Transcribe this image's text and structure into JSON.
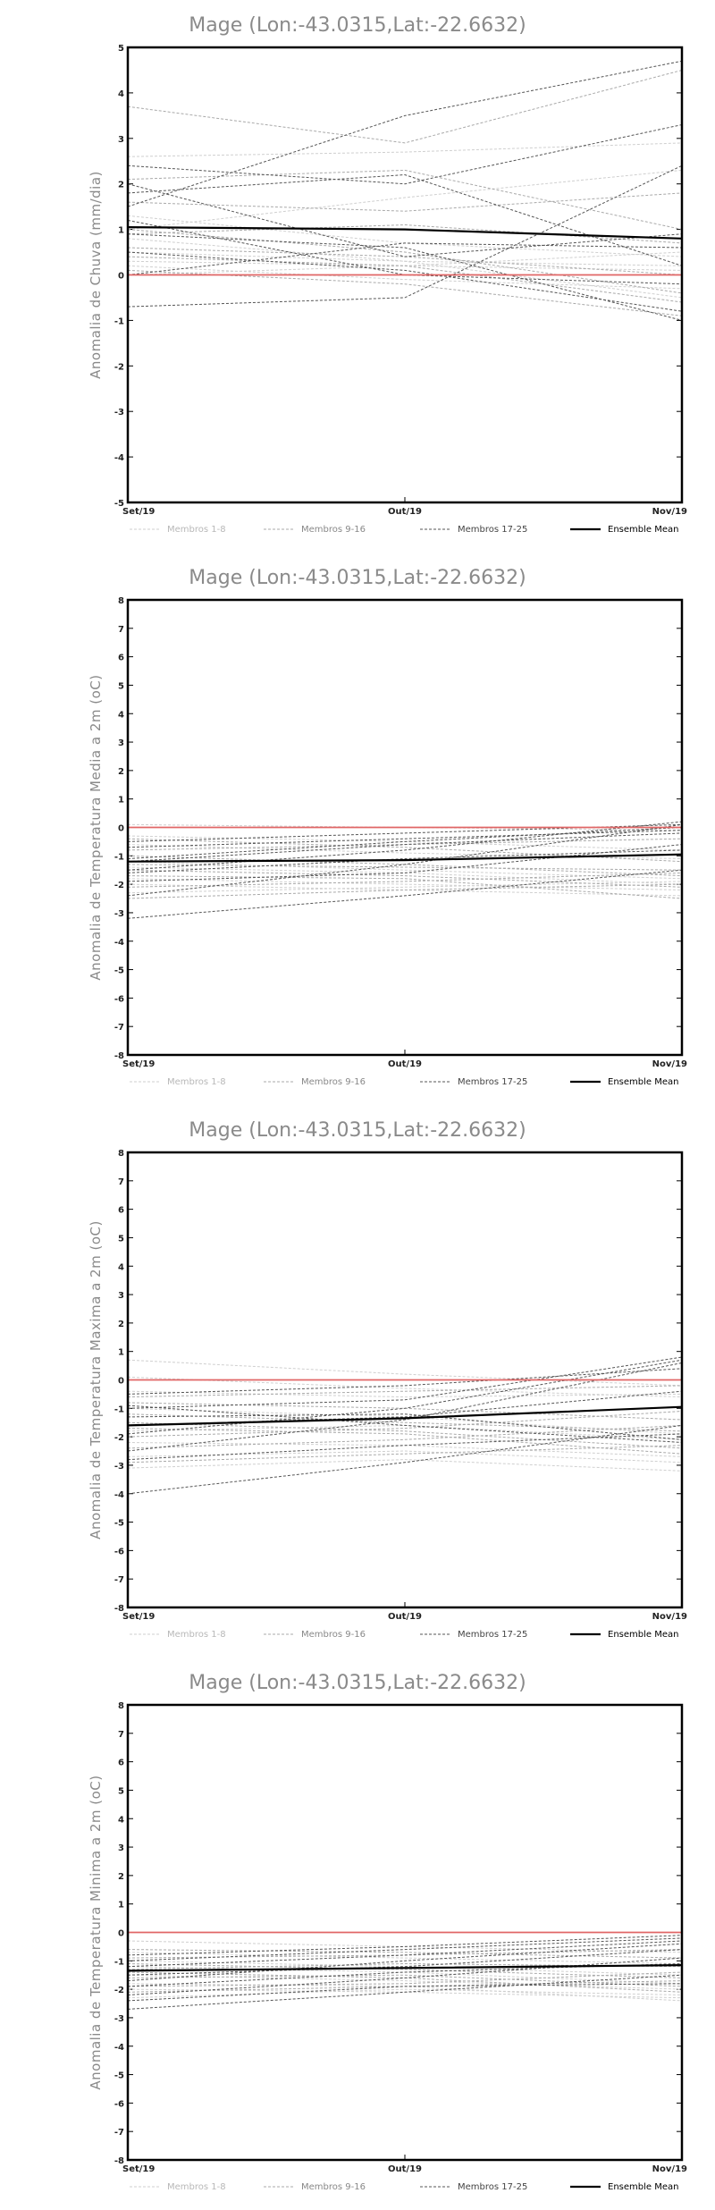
{
  "chart_data": [
    {
      "type": "line",
      "title": "Mage (Lon:-43.0315,Lat:-22.6632)",
      "ylabel": "Anomalia de Chuva (mm/dia)",
      "categories": [
        "Set/19",
        "Out/19",
        "Nov/19"
      ],
      "ylim": [
        -5,
        5
      ],
      "yticks": [
        -5,
        -4,
        -3,
        -2,
        -1,
        0,
        1,
        2,
        3,
        4,
        5
      ],
      "legend": [
        "Membros 1-8",
        "Membros 9-16",
        "Membros 17-25",
        "Ensemble Mean"
      ],
      "series": [
        {
          "group": 0,
          "values": [
            0.3,
            0.2,
            0.1
          ]
        },
        {
          "group": 0,
          "values": [
            0.5,
            0.3,
            0.2
          ]
        },
        {
          "group": 0,
          "values": [
            1.0,
            1.7,
            2.3
          ]
        },
        {
          "group": 0,
          "values": [
            2.6,
            2.7,
            2.9
          ]
        },
        {
          "group": 0,
          "values": [
            0.0,
            0.2,
            0.5
          ]
        },
        {
          "group": 0,
          "values": [
            1.3,
            0.7,
            0.4
          ]
        },
        {
          "group": 0,
          "values": [
            0.8,
            0.3,
            -0.5
          ]
        },
        {
          "group": 0,
          "values": [
            0.2,
            -0.1,
            -0.3
          ]
        },
        {
          "group": 1,
          "values": [
            0.6,
            0.4,
            0.0
          ]
        },
        {
          "group": 1,
          "values": [
            1.0,
            0.5,
            -0.4
          ]
        },
        {
          "group": 1,
          "values": [
            0.4,
            0.2,
            -0.6
          ]
        },
        {
          "group": 1,
          "values": [
            2.1,
            2.3,
            1.0
          ]
        },
        {
          "group": 1,
          "values": [
            3.7,
            2.9,
            4.5
          ]
        },
        {
          "group": 1,
          "values": [
            0.9,
            1.1,
            0.7
          ]
        },
        {
          "group": 1,
          "values": [
            0.1,
            -0.2,
            -0.9
          ]
        },
        {
          "group": 1,
          "values": [
            1.6,
            1.4,
            1.8
          ]
        },
        {
          "group": 2,
          "values": [
            1.5,
            3.5,
            4.7
          ]
        },
        {
          "group": 2,
          "values": [
            2.4,
            2.0,
            3.3
          ]
        },
        {
          "group": 2,
          "values": [
            -0.7,
            -0.5,
            2.4
          ]
        },
        {
          "group": 2,
          "values": [
            1.8,
            2.2,
            0.2
          ]
        },
        {
          "group": 2,
          "values": [
            0.5,
            0.1,
            -0.8
          ]
        },
        {
          "group": 2,
          "values": [
            0.9,
            0.6,
            -1.0
          ]
        },
        {
          "group": 2,
          "values": [
            2.0,
            0.4,
            0.9
          ]
        },
        {
          "group": 2,
          "values": [
            0.0,
            0.7,
            0.6
          ]
        },
        {
          "group": 2,
          "values": [
            1.2,
            0.0,
            -0.2
          ]
        },
        {
          "group": 3,
          "values": [
            1.05,
            1.0,
            0.8
          ]
        },
        {
          "group": 4,
          "values": [
            0.0,
            0.0,
            0.0
          ]
        }
      ]
    },
    {
      "type": "line",
      "title": "Mage (Lon:-43.0315,Lat:-22.6632)",
      "ylabel": "Anomalia de Temperatura Media a 2m (oC)",
      "categories": [
        "Set/19",
        "Out/19",
        "Nov/19"
      ],
      "ylim": [
        -8,
        8
      ],
      "yticks": [
        -8,
        -7,
        -6,
        -5,
        -4,
        -3,
        -2,
        -1,
        0,
        1,
        2,
        3,
        4,
        5,
        6,
        7,
        8
      ],
      "legend": [
        "Membros 1-8",
        "Membros 9-16",
        "Membros 17-25",
        "Ensemble Mean"
      ],
      "series": [
        {
          "group": 0,
          "values": [
            0.1,
            0.0,
            -0.1
          ]
        },
        {
          "group": 0,
          "values": [
            -1.2,
            -1.5,
            -1.8
          ]
        },
        {
          "group": 0,
          "values": [
            -2.0,
            -2.2,
            -2.4
          ]
        },
        {
          "group": 0,
          "values": [
            -0.6,
            -0.9,
            -1.1
          ]
        },
        {
          "group": 0,
          "values": [
            -1.8,
            -2.0,
            -2.2
          ]
        },
        {
          "group": 0,
          "values": [
            -1.4,
            -1.6,
            -2.0
          ]
        },
        {
          "group": 0,
          "values": [
            -2.3,
            -2.1,
            -1.9
          ]
        },
        {
          "group": 0,
          "values": [
            -0.3,
            -0.5,
            -0.8
          ]
        },
        {
          "group": 1,
          "values": [
            -1.0,
            -1.3,
            -1.7
          ]
        },
        {
          "group": 1,
          "values": [
            -1.5,
            -1.7,
            -2.1
          ]
        },
        {
          "group": 1,
          "values": [
            -2.1,
            -1.9,
            -1.6
          ]
        },
        {
          "group": 1,
          "values": [
            -0.8,
            -0.6,
            -0.4
          ]
        },
        {
          "group": 1,
          "values": [
            -1.7,
            -1.8,
            -2.5
          ]
        },
        {
          "group": 1,
          "values": [
            -0.4,
            -0.7,
            -1.2
          ]
        },
        {
          "group": 1,
          "values": [
            -1.3,
            -1.4,
            -1.5
          ]
        },
        {
          "group": 1,
          "values": [
            -2.5,
            -2.2,
            -2.0
          ]
        },
        {
          "group": 2,
          "values": [
            -3.2,
            -2.4,
            -1.5
          ]
        },
        {
          "group": 2,
          "values": [
            -2.4,
            -1.3,
            0.1
          ]
        },
        {
          "group": 2,
          "values": [
            -1.5,
            -0.8,
            0.2
          ]
        },
        {
          "group": 2,
          "values": [
            -1.1,
            -0.5,
            0.0
          ]
        },
        {
          "group": 2,
          "values": [
            -0.7,
            -0.4,
            -0.1
          ]
        },
        {
          "group": 2,
          "values": [
            -1.9,
            -1.6,
            -0.6
          ]
        },
        {
          "group": 2,
          "values": [
            -1.2,
            -0.6,
            -0.2
          ]
        },
        {
          "group": 2,
          "values": [
            -0.5,
            -0.2,
            0.1
          ]
        },
        {
          "group": 2,
          "values": [
            -1.6,
            -1.1,
            -0.8
          ]
        },
        {
          "group": 3,
          "values": [
            -1.2,
            -1.15,
            -0.95
          ]
        },
        {
          "group": 4,
          "values": [
            0.0,
            0.0,
            0.0
          ]
        }
      ]
    },
    {
      "type": "line",
      "title": "Mage (Lon:-43.0315,Lat:-22.6632)",
      "ylabel": "Anomalia de Temperatura Maxima a 2m (oC)",
      "categories": [
        "Set/19",
        "Out/19",
        "Nov/19"
      ],
      "ylim": [
        -8,
        8
      ],
      "yticks": [
        -8,
        -7,
        -6,
        -5,
        -4,
        -3,
        -2,
        -1,
        0,
        1,
        2,
        3,
        4,
        5,
        6,
        7,
        8
      ],
      "legend": [
        "Membros 1-8",
        "Membros 9-16",
        "Membros 17-25",
        "Ensemble Mean"
      ],
      "series": [
        {
          "group": 0,
          "values": [
            0.7,
            0.2,
            -0.2
          ]
        },
        {
          "group": 0,
          "values": [
            -2.7,
            -2.5,
            -2.9
          ]
        },
        {
          "group": 0,
          "values": [
            -1.0,
            -1.3,
            -1.9
          ]
        },
        {
          "group": 0,
          "values": [
            -2.2,
            -2.3,
            -2.7
          ]
        },
        {
          "group": 0,
          "values": [
            0.1,
            -0.3,
            -0.6
          ]
        },
        {
          "group": 0,
          "values": [
            -1.8,
            -1.6,
            -2.1
          ]
        },
        {
          "group": 0,
          "values": [
            -0.4,
            -0.6,
            -0.5
          ]
        },
        {
          "group": 0,
          "values": [
            -3.1,
            -2.8,
            -3.2
          ]
        },
        {
          "group": 1,
          "values": [
            -1.5,
            -1.8,
            -2.4
          ]
        },
        {
          "group": 1,
          "values": [
            -2.9,
            -2.6,
            -2.3
          ]
        },
        {
          "group": 1,
          "values": [
            -0.8,
            -1.0,
            -1.4
          ]
        },
        {
          "group": 1,
          "values": [
            -2.0,
            -1.7,
            -1.1
          ]
        },
        {
          "group": 1,
          "values": [
            -1.2,
            -1.5,
            -1.8
          ]
        },
        {
          "group": 1,
          "values": [
            -0.6,
            -0.4,
            -0.2
          ]
        },
        {
          "group": 1,
          "values": [
            -2.4,
            -2.1,
            -1.6
          ]
        },
        {
          "group": 1,
          "values": [
            -1.7,
            -1.9,
            -2.6
          ]
        },
        {
          "group": 2,
          "values": [
            -4.0,
            -2.9,
            -1.6
          ]
        },
        {
          "group": 2,
          "values": [
            -2.5,
            -1.4,
            0.6
          ]
        },
        {
          "group": 2,
          "values": [
            -1.9,
            -1.0,
            0.7
          ]
        },
        {
          "group": 2,
          "values": [
            -1.0,
            -0.7,
            0.8
          ]
        },
        {
          "group": 2,
          "values": [
            -0.5,
            -0.2,
            0.4
          ]
        },
        {
          "group": 2,
          "values": [
            -1.3,
            -1.2,
            -2.1
          ]
        },
        {
          "group": 2,
          "values": [
            -2.8,
            -2.3,
            -1.9
          ]
        },
        {
          "group": 2,
          "values": [
            -1.6,
            -1.3,
            -0.4
          ]
        },
        {
          "group": 2,
          "values": [
            -0.9,
            -1.6,
            -2.2
          ]
        },
        {
          "group": 3,
          "values": [
            -1.6,
            -1.35,
            -0.95
          ]
        },
        {
          "group": 4,
          "values": [
            0.0,
            0.0,
            0.0
          ]
        }
      ]
    },
    {
      "type": "line",
      "title": "Mage (Lon:-43.0315,Lat:-22.6632)",
      "ylabel": "Anomalia de Temperatura Minima a 2m (oC)",
      "categories": [
        "Set/19",
        "Out/19",
        "Nov/19"
      ],
      "ylim": [
        -8,
        8
      ],
      "yticks": [
        -8,
        -7,
        -6,
        -5,
        -4,
        -3,
        -2,
        -1,
        0,
        1,
        2,
        3,
        4,
        5,
        6,
        7,
        8
      ],
      "legend": [
        "Membros 1-8",
        "Membros 9-16",
        "Membros 17-25",
        "Ensemble Mean"
      ],
      "series": [
        {
          "group": 0,
          "values": [
            -0.3,
            -0.5,
            -0.7
          ]
        },
        {
          "group": 0,
          "values": [
            -1.5,
            -1.7,
            -2.0
          ]
        },
        {
          "group": 0,
          "values": [
            -2.0,
            -2.1,
            -2.3
          ]
        },
        {
          "group": 0,
          "values": [
            -1.0,
            -1.2,
            -1.5
          ]
        },
        {
          "group": 0,
          "values": [
            -1.8,
            -1.9,
            -2.4
          ]
        },
        {
          "group": 0,
          "values": [
            -0.7,
            -0.9,
            -1.1
          ]
        },
        {
          "group": 0,
          "values": [
            -2.3,
            -2.0,
            -2.2
          ]
        },
        {
          "group": 0,
          "values": [
            -1.2,
            -1.4,
            -1.8
          ]
        },
        {
          "group": 1,
          "values": [
            -1.1,
            -1.3,
            -1.6
          ]
        },
        {
          "group": 1,
          "values": [
            -1.6,
            -1.5,
            -1.9
          ]
        },
        {
          "group": 1,
          "values": [
            -0.9,
            -0.8,
            -0.6
          ]
        },
        {
          "group": 1,
          "values": [
            -2.1,
            -1.9,
            -1.7
          ]
        },
        {
          "group": 1,
          "values": [
            -1.4,
            -1.6,
            -2.1
          ]
        },
        {
          "group": 1,
          "values": [
            -0.6,
            -0.7,
            -0.9
          ]
        },
        {
          "group": 1,
          "values": [
            -1.9,
            -1.8,
            -1.4
          ]
        },
        {
          "group": 1,
          "values": [
            -1.3,
            -1.1,
            -1.2
          ]
        },
        {
          "group": 2,
          "values": [
            -2.7,
            -2.1,
            -1.5
          ]
        },
        {
          "group": 2,
          "values": [
            -2.2,
            -1.6,
            -0.9
          ]
        },
        {
          "group": 2,
          "values": [
            -1.7,
            -1.0,
            -0.4
          ]
        },
        {
          "group": 2,
          "values": [
            -1.0,
            -0.6,
            -0.2
          ]
        },
        {
          "group": 2,
          "values": [
            -0.8,
            -0.5,
            -0.1
          ]
        },
        {
          "group": 2,
          "values": [
            -1.5,
            -1.2,
            -0.6
          ]
        },
        {
          "group": 2,
          "values": [
            -1.2,
            -0.8,
            -0.3
          ]
        },
        {
          "group": 2,
          "values": [
            -2.4,
            -1.9,
            -1.8
          ]
        },
        {
          "group": 2,
          "values": [
            -1.9,
            -1.4,
            -1.1
          ]
        },
        {
          "group": 3,
          "values": [
            -1.35,
            -1.25,
            -1.15
          ]
        },
        {
          "group": 4,
          "values": [
            0.0,
            0.0,
            0.0
          ]
        }
      ]
    }
  ],
  "style": {
    "group_colors": [
      "#cfcfcf",
      "#a9a9a9",
      "#555555",
      "#000000",
      "#e06666"
    ],
    "axis_color": "#000000",
    "title_color": "#8a8a8a"
  }
}
